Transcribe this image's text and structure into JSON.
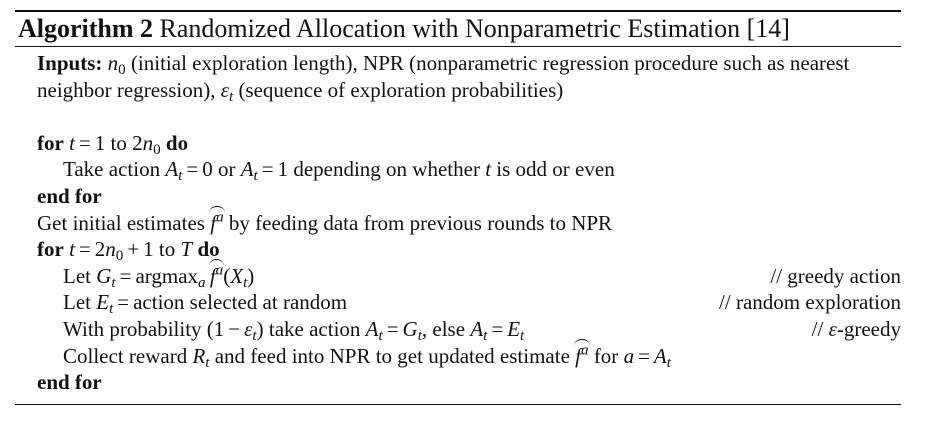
{
  "algorithm": {
    "label": "Algorithm 2",
    "title": "Randomized Allocation with Nonparametric Estimation [14]"
  },
  "inputs": {
    "keyword": "Inputs:",
    "n0_sym": "n",
    "n0_sub": "0",
    "n0_desc": " (initial exploration length), NPR (nonparametric regression procedure such as nearest",
    "line2_a": "neighbor regression), ",
    "eps_sym": "ε",
    "eps_sub": "t",
    "line2_b": " (sequence of exploration probabilities)"
  },
  "loop1": {
    "for_kw": "for",
    "var_t": "t",
    "eq": "=",
    "start": "1",
    "to": "to",
    "end_coef": "2",
    "n_sym": "n",
    "n_sub": "0",
    "do_kw": "do",
    "body_a": "Take action ",
    "A_sym": "A",
    "A_sub": "t",
    "val0": "0",
    "or": "or",
    "val1": "1",
    "body_b": "depending on whether ",
    "body_t": "t",
    "body_c": " is odd or even",
    "end_kw": "end for"
  },
  "initial": {
    "text_a": "Get initial estimates ",
    "f_sym": "f",
    "f_sup": "a",
    "text_b": " by feeding data from previous rounds to NPR"
  },
  "loop2": {
    "for_kw": "for",
    "var_t": "t",
    "eq": "=",
    "start_coef": "2",
    "n_sym": "n",
    "n_sub": "0",
    "plus": "+",
    "one": "1",
    "to": "to",
    "T_sym": "T",
    "do_kw": "do",
    "let_g_a": "Let ",
    "G_sym": "G",
    "G_sub": "t",
    "argmax": "argmax",
    "argmax_sub": "a",
    "f_sym": "f",
    "f_sup": "a",
    "X_open": "(",
    "X_sym": "X",
    "X_sub": "t",
    "X_close": ")",
    "comment_greedy": "// greedy action",
    "let_e_a": "Let ",
    "E_sym": "E",
    "E_sub": "t",
    "let_e_b": "action selected at random",
    "comment_random": "// random exploration",
    "prob_a": "With probability (1",
    "minus": "−",
    "eps_sym": "ε",
    "eps_sub": "t",
    "prob_b": ") take action ",
    "A_sym": "A",
    "A_sub": "t",
    "prob_c": ", else ",
    "comment_eps_slashes": "// ",
    "comment_eps_sym": "ε",
    "comment_eps_text": "-greedy",
    "collect_a": "Collect reward ",
    "R_sym": "R",
    "R_sub": "t",
    "collect_b": " and feed into NPR to get updated estimate ",
    "collect_c": " for ",
    "a_sym": "a",
    "end_kw": "end for"
  }
}
